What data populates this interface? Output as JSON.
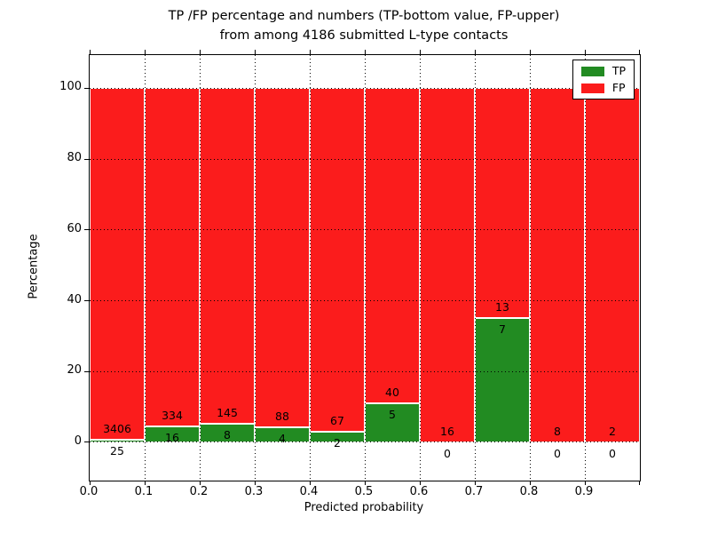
{
  "title": {
    "line1": "TP /FP percentage and numbers (TP-bottom value, FP-upper)",
    "line2": "from among 4186 submitted L-type contacts"
  },
  "chart_data": {
    "type": "bar",
    "subtype": "stacked-percentage-histogram",
    "title": "TP /FP percentage and numbers (TP-bottom value, FP-upper) from among 4186 submitted L-type contacts",
    "xlabel": "Predicted probability",
    "ylabel": "Percentage",
    "total_contacts": 4186,
    "bins": [
      "0.0-0.1",
      "0.1-0.2",
      "0.2-0.3",
      "0.3-0.4",
      "0.4-0.5",
      "0.5-0.6",
      "0.6-0.7",
      "0.7-0.8",
      "0.8-0.9",
      "0.9-1.0"
    ],
    "series": [
      {
        "name": "TP",
        "color": "#228b22",
        "counts": [
          25,
          16,
          8,
          4,
          2,
          5,
          0,
          7,
          0,
          0
        ]
      },
      {
        "name": "FP",
        "color": "#fb1c1c",
        "counts": [
          3406,
          334,
          145,
          88,
          67,
          40,
          16,
          13,
          8,
          2
        ]
      }
    ],
    "bar_total_height_percent": 100,
    "xticks": [
      "0.0",
      "0.1",
      "0.2",
      "0.3",
      "0.4",
      "0.5",
      "0.6",
      "0.7",
      "0.8",
      "0.9"
    ],
    "yticks": [
      0,
      20,
      40,
      60,
      80,
      100
    ],
    "xlim": [
      0,
      1
    ],
    "ylim": [
      -10.8,
      109.4
    ],
    "grid": {
      "style": "dotted",
      "color": "#000000"
    },
    "legend": {
      "position": "upper-right",
      "entries": [
        {
          "label": "TP",
          "color": "#228b22"
        },
        {
          "label": "FP",
          "color": "#fb1c1c"
        }
      ]
    }
  }
}
